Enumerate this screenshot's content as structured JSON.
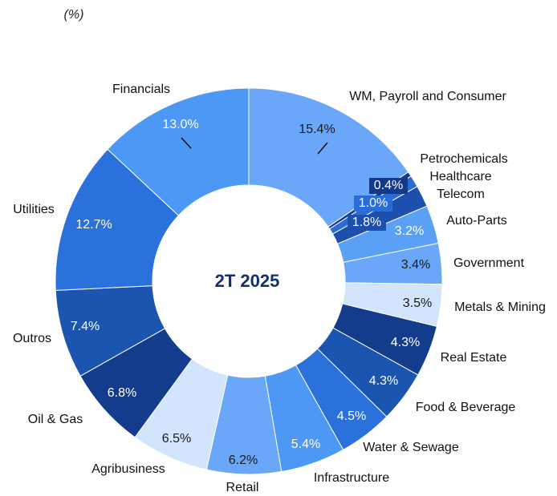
{
  "chart_data": {
    "type": "donut",
    "subtitle": "(%)",
    "center_label": "2T 2025",
    "categories": [
      "WM, Payroll and Consumer",
      "Petrochemicals",
      "Healthcare",
      "Telecom",
      "Auto-Parts",
      "Government",
      "Metals & Mining",
      "Real Estate",
      "Food & Beverage",
      "Water & Sewage",
      "Infrastructure",
      "Retail",
      "Agribusiness",
      "Oil & Gas",
      "Outros",
      "Utilities",
      "Financials"
    ],
    "values": [
      15.4,
      0.4,
      1.0,
      1.8,
      3.2,
      3.4,
      3.5,
      4.3,
      4.3,
      4.5,
      5.4,
      6.2,
      6.5,
      6.8,
      7.4,
      12.7,
      13.0
    ],
    "value_labels": [
      "15.4%",
      "0.4%",
      "1.0%",
      "1.8%",
      "3.2%",
      "3.4%",
      "3.5%",
      "4.3%",
      "4.3%",
      "4.5%",
      "5.4%",
      "6.2%",
      "6.5%",
      "6.8%",
      "7.4%",
      "12.7%",
      "13.0%"
    ],
    "colors": [
      "#6aa7f8",
      "#15398a",
      "#2a6dd6",
      "#1d4fae",
      "#5aa0f5",
      "#6aa7f8",
      "#d3e5fc",
      "#143c8c",
      "#1c55b0",
      "#2b71db",
      "#4d98f5",
      "#6aa7f8",
      "#d3e5fc",
      "#143c8c",
      "#1c55b0",
      "#2b71db",
      "#4d98f5"
    ]
  }
}
